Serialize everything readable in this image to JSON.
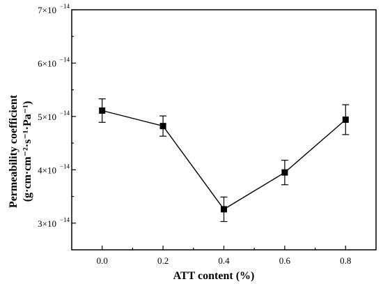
{
  "chart_data": {
    "type": "line",
    "xlabel": "ATT content (%)",
    "ylabel_line1": "Permeability coefficient",
    "ylabel_line2": "(g·cm·cm⁻²·s⁻¹·Pa⁻¹)",
    "xlim": [
      -0.1,
      0.9
    ],
    "ylim": [
      2.5e-14,
      7e-14
    ],
    "x_ticks": [
      {
        "value": 0.0,
        "label": "0.0"
      },
      {
        "value": 0.2,
        "label": "0.2"
      },
      {
        "value": 0.4,
        "label": "0.4"
      },
      {
        "value": 0.6,
        "label": "0.6"
      },
      {
        "value": 0.8,
        "label": "0.8"
      }
    ],
    "y_ticks": [
      {
        "value": 3e-14,
        "mantissa": "3×10",
        "exponent": "−14"
      },
      {
        "value": 4e-14,
        "mantissa": "4×10",
        "exponent": "−14"
      },
      {
        "value": 5e-14,
        "mantissa": "5×10",
        "exponent": "−14"
      },
      {
        "value": 6e-14,
        "mantissa": "6×10",
        "exponent": "−14"
      },
      {
        "value": 7e-14,
        "mantissa": "7×10",
        "exponent": "−14"
      }
    ],
    "series": [
      {
        "x": [
          0.0,
          0.2,
          0.4,
          0.6,
          0.8
        ],
        "y": [
          5.11e-14,
          4.82e-14,
          3.26e-14,
          3.95e-14,
          4.94e-14
        ],
        "error": [
          2.2e-15,
          1.9e-15,
          2.3e-15,
          2.3e-15,
          2.8e-15
        ]
      }
    ],
    "grid": false,
    "legend": "none"
  }
}
